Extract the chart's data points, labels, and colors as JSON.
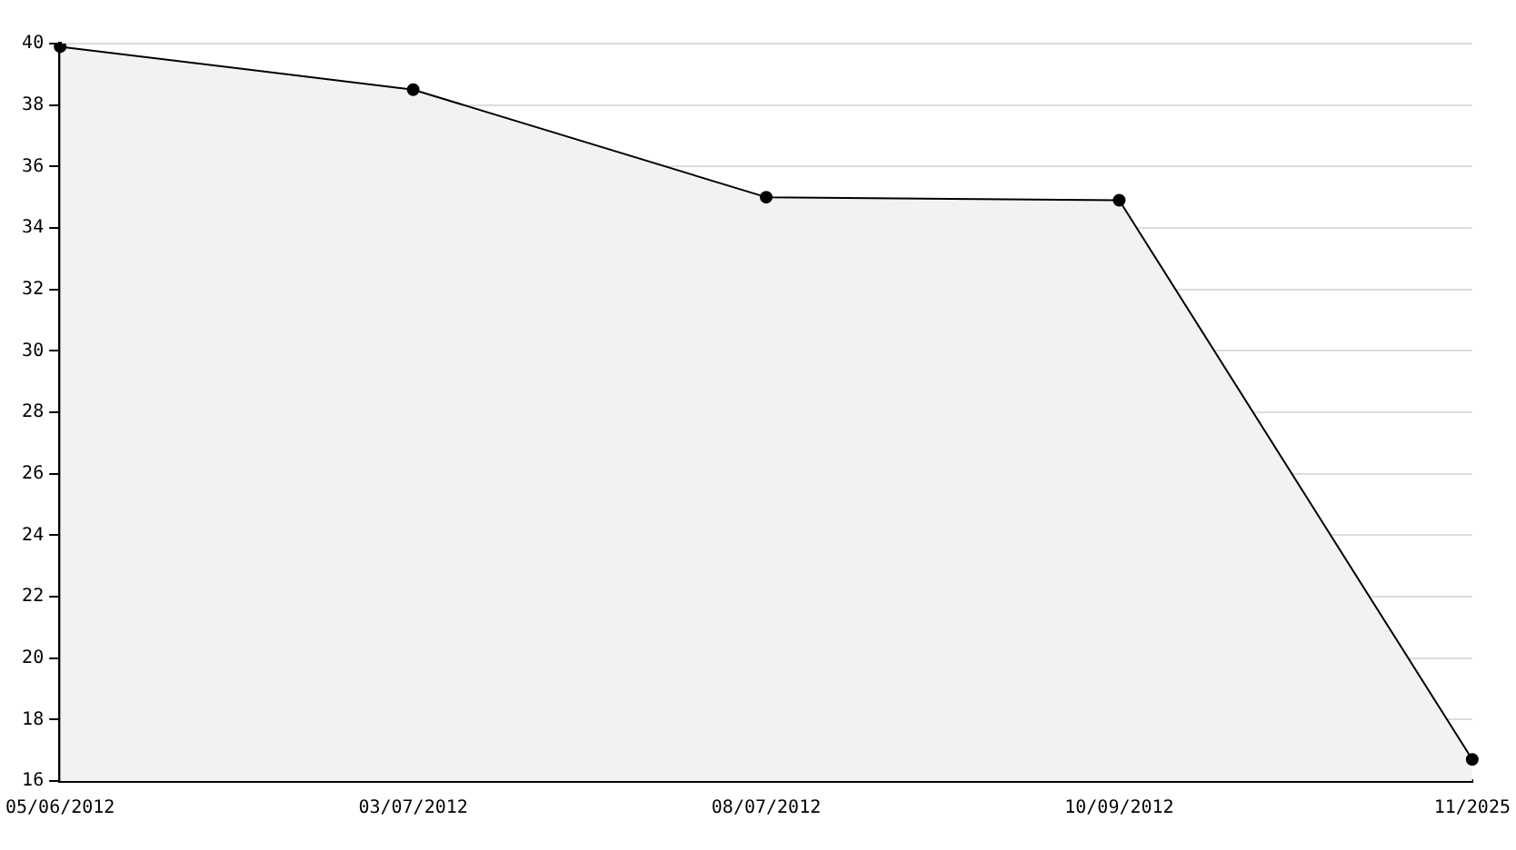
{
  "chart_data": {
    "type": "area",
    "categories": [
      "05/06/2012",
      "03/07/2012",
      "08/07/2012",
      "10/09/2012",
      "11/2025"
    ],
    "series": [
      {
        "color": "#000000",
        "values": [
          39.9,
          38.5,
          35.0,
          34.9,
          16.7
        ]
      }
    ],
    "ylim": [
      16,
      40
    ],
    "yticks": [
      16,
      18,
      20,
      22,
      24,
      26,
      28,
      30,
      32,
      34,
      36,
      38,
      40
    ],
    "grid": "y",
    "marker": "circle",
    "legend": false
  }
}
